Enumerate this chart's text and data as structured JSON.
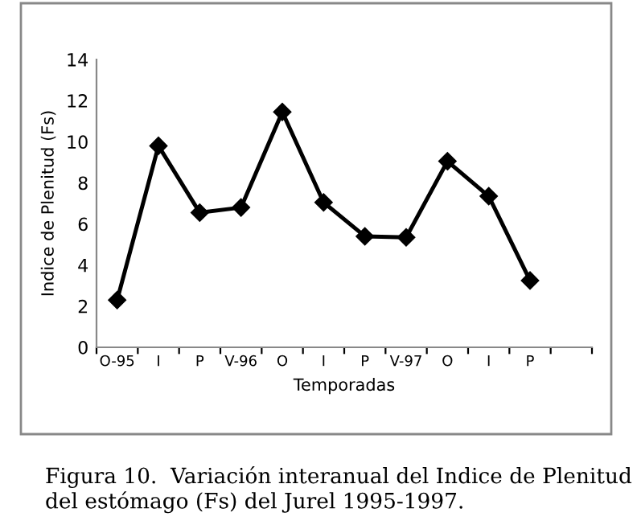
{
  "chart_data": {
    "type": "line",
    "xlabel": "Temporadas",
    "ylabel": "Indice de Plenitud (Fs)",
    "categories": [
      "O-95",
      "I",
      "P",
      "V-96",
      "O",
      "I",
      "P",
      "V-97",
      "O",
      "I",
      "P",
      null
    ],
    "series": [
      {
        "color": "#000000",
        "values": [
          2.3,
          9.8,
          6.55,
          6.8,
          11.45,
          7.05,
          5.4,
          5.35,
          9.05,
          7.35,
          3.25,
          null
        ]
      }
    ],
    "ylim": [
      0,
      14
    ],
    "yticks": [
      0,
      2,
      4,
      6,
      8,
      10,
      12,
      14
    ],
    "grid": false,
    "legend": false,
    "marker": "diamond",
    "line_style": "solid",
    "annotations": [
      "Figura 10.  Variación interanual del Indice de Plenitud del estómago (Fs) del Jurel 1995-1997."
    ]
  }
}
